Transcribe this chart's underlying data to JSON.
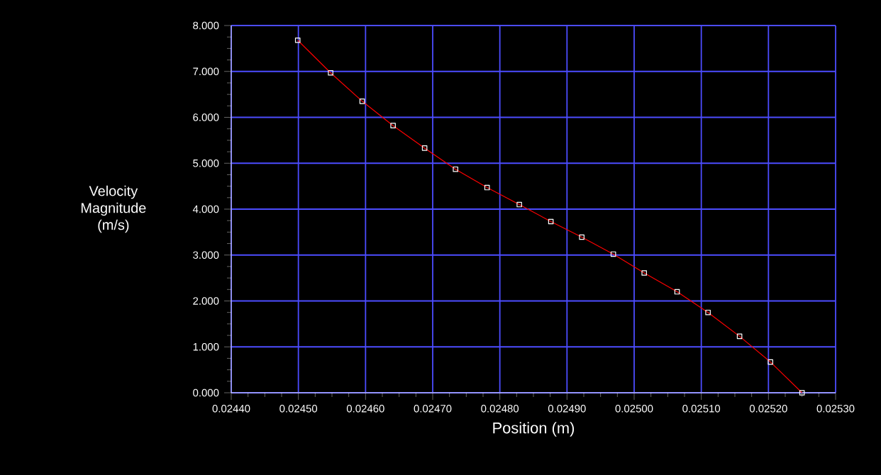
{
  "chart_data": {
    "type": "line",
    "xlabel": "Position (m)",
    "ylabel": "Velocity Magnitude (m/s)",
    "x": [
      0.024499,
      0.024548,
      0.024595,
      0.024641,
      0.024688,
      0.024734,
      0.024781,
      0.024829,
      0.024876,
      0.024922,
      0.024969,
      0.025015,
      0.025064,
      0.02511,
      0.025157,
      0.025203,
      0.02525
    ],
    "series": [
      {
        "color": "#ff0000",
        "values": [
          7.68,
          6.97,
          6.35,
          5.82,
          5.33,
          4.87,
          4.47,
          4.1,
          3.73,
          3.39,
          3.02,
          2.61,
          2.2,
          1.75,
          1.23,
          0.67,
          0.0
        ]
      }
    ],
    "xlim": [
      0.0244,
      0.0253
    ],
    "ylim": [
      0,
      8
    ],
    "xticks": [
      {
        "value": 0.0244,
        "label": "0.02440"
      },
      {
        "value": 0.0245,
        "label": "0.02450"
      },
      {
        "value": 0.0246,
        "label": "0.02460"
      },
      {
        "value": 0.0247,
        "label": "0.02470"
      },
      {
        "value": 0.0248,
        "label": "0.02480"
      },
      {
        "value": 0.0249,
        "label": "0.02490"
      },
      {
        "value": 0.025,
        "label": "0.02500"
      },
      {
        "value": 0.0251,
        "label": "0.02510"
      },
      {
        "value": 0.0252,
        "label": "0.02520"
      },
      {
        "value": 0.0253,
        "label": "0.02530"
      }
    ],
    "yticks": [
      {
        "value": 0,
        "label": "0.000"
      },
      {
        "value": 1,
        "label": "1.000"
      },
      {
        "value": 2,
        "label": "2.000"
      },
      {
        "value": 3,
        "label": "3.000"
      },
      {
        "value": 4,
        "label": "4.000"
      },
      {
        "value": 5,
        "label": "5.000"
      },
      {
        "value": 6,
        "label": "6.000"
      },
      {
        "value": 7,
        "label": "7.000"
      },
      {
        "value": 8,
        "label": "8.000"
      }
    ],
    "grid": true,
    "marker": "square",
    "line_style": "solid"
  }
}
